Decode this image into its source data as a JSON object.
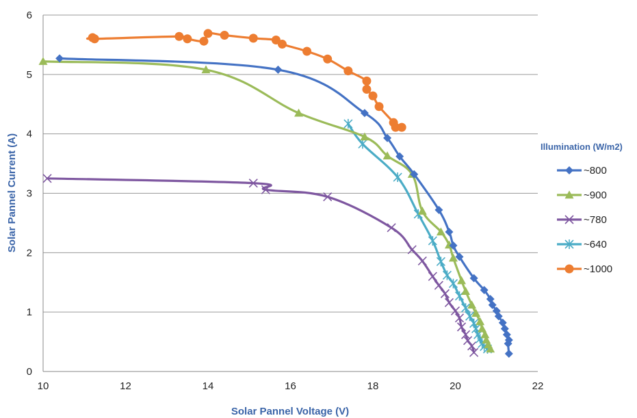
{
  "chart_data": {
    "type": "line",
    "xlabel": "Solar Pannel Voltage (V)",
    "ylabel": "Solar Pannel Current (A)",
    "xlim": [
      10,
      22
    ],
    "ylim": [
      0,
      6
    ],
    "xticks": [
      "10",
      "12",
      "14",
      "16",
      "18",
      "20",
      "22"
    ],
    "yticks": [
      "0",
      "1",
      "2",
      "3",
      "4",
      "5",
      "6"
    ],
    "grid": "horizontal",
    "legend_title": "Illumination (W/m2)",
    "legend_position": "right",
    "series": [
      {
        "name": "~800",
        "color": "#4472c4",
        "marker": "diamond",
        "points": [
          [
            10.4,
            5.27
          ],
          [
            15.7,
            5.08
          ],
          [
            17.8,
            4.35
          ],
          [
            18.35,
            3.93
          ],
          [
            18.65,
            3.62
          ],
          [
            19.0,
            3.32
          ],
          [
            19.6,
            2.72
          ],
          [
            19.85,
            2.35
          ],
          [
            19.95,
            2.12
          ],
          [
            20.1,
            1.93
          ],
          [
            20.45,
            1.57
          ],
          [
            20.7,
            1.37
          ],
          [
            20.85,
            1.22
          ],
          [
            20.9,
            1.12
          ],
          [
            21.0,
            1.02
          ],
          [
            21.05,
            0.93
          ],
          [
            21.15,
            0.82
          ],
          [
            21.2,
            0.72
          ],
          [
            21.25,
            0.62
          ],
          [
            21.3,
            0.53
          ],
          [
            21.28,
            0.47
          ],
          [
            21.3,
            0.3
          ]
        ]
      },
      {
        "name": "~900",
        "color": "#9bbb59",
        "marker": "triangle",
        "points": [
          [
            10.0,
            5.22
          ],
          [
            13.95,
            5.08
          ],
          [
            16.2,
            4.35
          ],
          [
            17.8,
            3.95
          ],
          [
            18.35,
            3.63
          ],
          [
            18.95,
            3.32
          ],
          [
            19.2,
            2.7
          ],
          [
            19.65,
            2.35
          ],
          [
            19.85,
            2.13
          ],
          [
            19.95,
            1.91
          ],
          [
            20.15,
            1.53
          ],
          [
            20.25,
            1.35
          ],
          [
            20.4,
            1.12
          ],
          [
            20.5,
            0.98
          ],
          [
            20.6,
            0.84
          ],
          [
            20.65,
            0.72
          ],
          [
            20.72,
            0.62
          ],
          [
            20.75,
            0.53
          ],
          [
            20.8,
            0.45
          ],
          [
            20.85,
            0.38
          ]
        ]
      },
      {
        "name": "~780",
        "color": "#7e57a0",
        "marker": "x",
        "points": [
          [
            10.1,
            3.25
          ],
          [
            15.1,
            3.17
          ],
          [
            15.4,
            3.06
          ],
          [
            16.9,
            2.94
          ],
          [
            18.45,
            2.42
          ],
          [
            18.95,
            2.05
          ],
          [
            19.2,
            1.86
          ],
          [
            19.45,
            1.6
          ],
          [
            19.6,
            1.45
          ],
          [
            19.75,
            1.31
          ],
          [
            19.85,
            1.16
          ],
          [
            20.0,
            1.02
          ],
          [
            20.1,
            0.9
          ],
          [
            20.15,
            0.75
          ],
          [
            20.25,
            0.62
          ],
          [
            20.3,
            0.52
          ],
          [
            20.4,
            0.43
          ],
          [
            20.45,
            0.32
          ]
        ]
      },
      {
        "name": "~640",
        "color": "#4bacc6",
        "marker": "star",
        "points": [
          [
            17.4,
            4.17
          ],
          [
            17.75,
            3.83
          ],
          [
            18.6,
            3.27
          ],
          [
            19.1,
            2.65
          ],
          [
            19.45,
            2.2
          ],
          [
            19.65,
            1.85
          ],
          [
            19.8,
            1.62
          ],
          [
            19.95,
            1.48
          ],
          [
            20.1,
            1.27
          ],
          [
            20.25,
            1.07
          ],
          [
            20.35,
            0.93
          ],
          [
            20.45,
            0.81
          ],
          [
            20.5,
            0.72
          ],
          [
            20.55,
            0.62
          ],
          [
            20.6,
            0.55
          ],
          [
            20.65,
            0.47
          ],
          [
            20.7,
            0.42
          ],
          [
            20.78,
            0.38
          ]
        ]
      },
      {
        "name": "~1000",
        "color": "#ed7d31",
        "marker": "circle",
        "points": [
          [
            11.2,
            5.62
          ],
          [
            11.25,
            5.6
          ],
          [
            13.3,
            5.64
          ],
          [
            13.5,
            5.6
          ],
          [
            13.9,
            5.56
          ],
          [
            14.0,
            5.69
          ],
          [
            14.4,
            5.66
          ],
          [
            15.1,
            5.61
          ],
          [
            15.65,
            5.58
          ],
          [
            15.8,
            5.51
          ],
          [
            16.4,
            5.39
          ],
          [
            16.9,
            5.26
          ],
          [
            17.4,
            5.06
          ],
          [
            17.85,
            4.89
          ],
          [
            17.85,
            4.75
          ],
          [
            18.0,
            4.64
          ],
          [
            18.15,
            4.46
          ],
          [
            18.5,
            4.19
          ],
          [
            18.55,
            4.11
          ],
          [
            18.7,
            4.11
          ]
        ]
      }
    ]
  }
}
